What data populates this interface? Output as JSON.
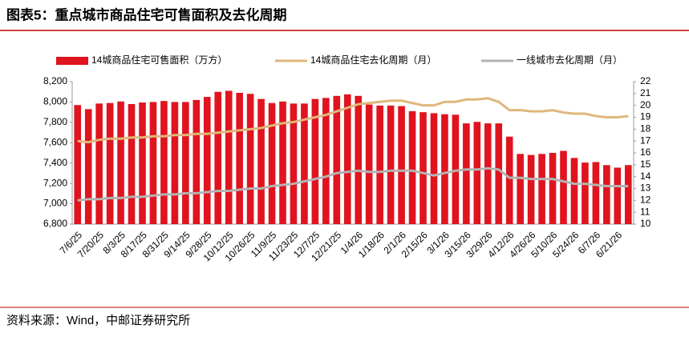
{
  "chart_data": {
    "type": "bar_line",
    "title": "图表5：重点城市商品住宅可售面积及去化周期",
    "source": "资料来源：Wind，中邮证券研究所",
    "categories": [
      "7/6/25",
      null,
      "7/20/25",
      null,
      "8/3/25",
      null,
      "8/17/25",
      null,
      "8/31/25",
      null,
      "9/14/25",
      null,
      "9/28/25",
      null,
      "10/12/25",
      null,
      "10/26/25",
      null,
      "11/9/25",
      null,
      "11/23/25",
      null,
      "12/7/25",
      null,
      "12/21/25",
      null,
      "1/4/26",
      null,
      "1/18/26",
      null,
      "2/1/26",
      null,
      "2/15/26",
      null,
      "3/1/26",
      null,
      "3/15/26",
      null,
      "3/29/26",
      null,
      "4/12/26",
      null,
      "4/26/26",
      null,
      "5/10/26",
      null,
      "5/24/26",
      null,
      "6/7/26",
      null,
      "6/21/26",
      null
    ],
    "series": [
      {
        "name": "14城商品住宅可售面积（万方）",
        "color": "#e0141e",
        "kind": "bar",
        "values": [
          7970,
          7930,
          7985,
          7990,
          8005,
          7980,
          7995,
          8000,
          8010,
          8000,
          8000,
          8020,
          8050,
          8100,
          8110,
          8090,
          8080,
          8030,
          7990,
          8005,
          7985,
          7985,
          8030,
          8040,
          8060,
          8075,
          8060,
          7975,
          7965,
          7965,
          7960,
          7910,
          7900,
          7890,
          7880,
          7875,
          7790,
          7805,
          7790,
          7790,
          7660,
          7490,
          7480,
          7490,
          7500,
          7520,
          7450,
          7405,
          7410,
          7380,
          7355,
          7380
        ]
      },
      {
        "name": "14城商品住宅去化周期（月）",
        "color": "#dfb77c",
        "kind": "line",
        "axis": "y2",
        "values": [
          17.0,
          16.9,
          17.1,
          17.2,
          17.2,
          17.3,
          17.3,
          17.4,
          17.4,
          17.5,
          17.5,
          17.6,
          17.6,
          17.7,
          17.8,
          17.9,
          18.0,
          18.1,
          18.3,
          18.5,
          18.6,
          18.8,
          19.0,
          19.2,
          19.5,
          19.8,
          20.1,
          20.2,
          20.3,
          20.4,
          20.4,
          20.2,
          20.0,
          20.0,
          20.3,
          20.3,
          20.5,
          20.5,
          20.6,
          20.3,
          19.6,
          19.6,
          19.5,
          19.5,
          19.6,
          19.4,
          19.3,
          19.3,
          19.1,
          19.0,
          19.0,
          19.1
        ]
      },
      {
        "name": "一线城市去化周期（月）",
        "color": "#b3b3b3",
        "kind": "line",
        "axis": "y2",
        "values": [
          12.0,
          12.1,
          12.1,
          12.2,
          12.2,
          12.3,
          12.3,
          12.4,
          12.5,
          12.5,
          12.6,
          12.6,
          12.7,
          12.8,
          12.8,
          12.9,
          13.0,
          13.0,
          13.2,
          13.3,
          13.4,
          13.6,
          13.8,
          14.0,
          14.3,
          14.4,
          14.5,
          14.4,
          14.4,
          14.5,
          14.5,
          14.5,
          14.3,
          14.1,
          14.3,
          14.5,
          14.6,
          14.6,
          14.7,
          14.6,
          13.9,
          13.9,
          13.8,
          13.8,
          13.8,
          13.6,
          13.4,
          13.4,
          13.3,
          13.2,
          13.2,
          13.2
        ]
      }
    ],
    "ylim": [
      6800,
      8200
    ],
    "yticks": [
      {
        "value": 6800,
        "label": "6,800"
      },
      {
        "value": 7000,
        "label": "7,000"
      },
      {
        "value": 7200,
        "label": "7,200"
      },
      {
        "value": 7400,
        "label": "7,400"
      },
      {
        "value": 7600,
        "label": "7,600"
      },
      {
        "value": 7800,
        "label": "7,800"
      },
      {
        "value": 8000,
        "label": "8,000"
      },
      {
        "value": 8200,
        "label": "8,200"
      }
    ],
    "y2lim": [
      10,
      22
    ],
    "y2ticks": [
      10,
      11,
      12,
      13,
      14,
      15,
      16,
      17,
      18,
      19,
      20,
      21,
      22
    ],
    "legend": "top"
  }
}
